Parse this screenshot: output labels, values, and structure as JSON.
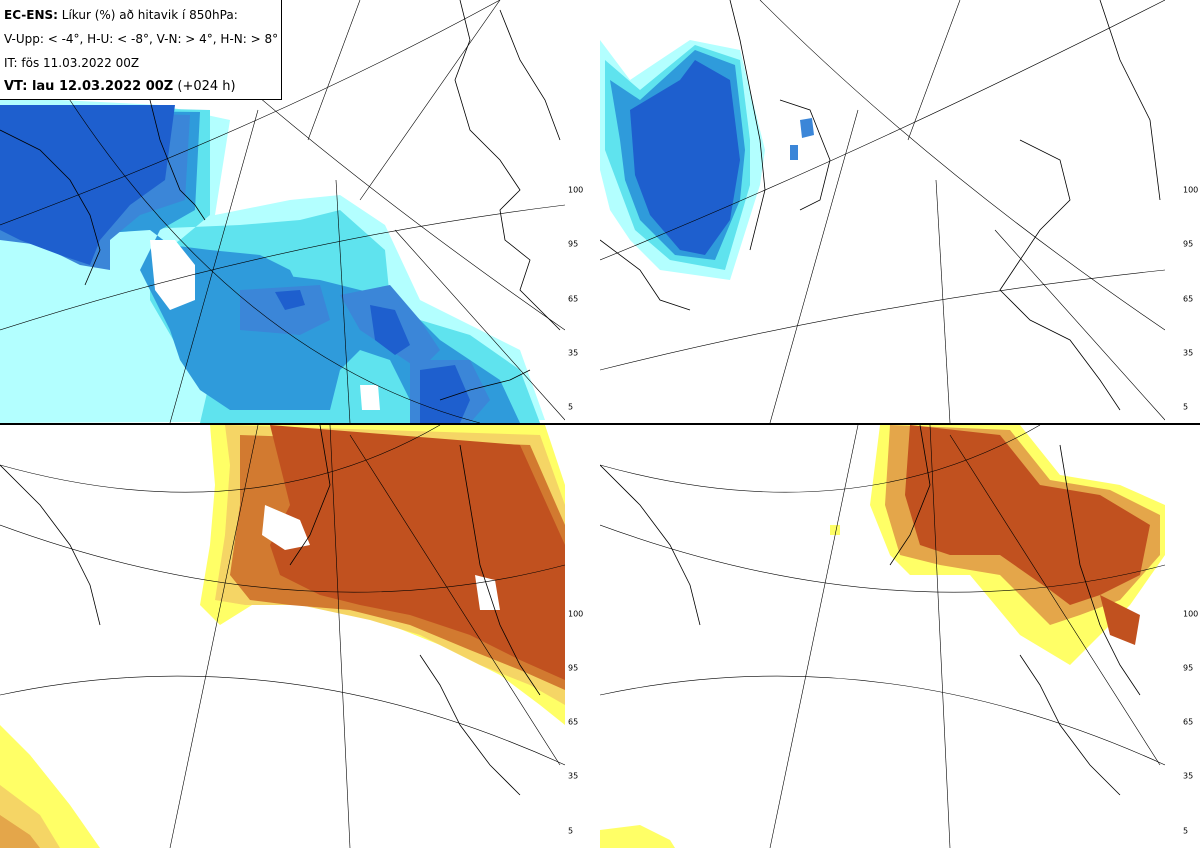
{
  "info": {
    "line1_bold": "EC-ENS:",
    "line1_rest": " Líkur (%) að hitavik í 850hPa:",
    "line2": "V-Upp: < -4°, H-U: < -8°, V-N: > 4°, H-N: > 8°",
    "line3": "IT: fös 11.03.2022 00Z",
    "line4_bold": "VT: lau 12.03.2022 00Z",
    "line4_rest": " (+024 h)"
  },
  "colorbar_ticks": [
    "100",
    "95",
    "65",
    "35",
    "5"
  ],
  "colors": {
    "cold": [
      "#b3ffff",
      "#5fe3ee",
      "#2f9bdb",
      "#3b86d8",
      "#1e5fce"
    ],
    "warm": [
      "#ffff66",
      "#f5d565",
      "#e4a64a",
      "#d27a30",
      "#c1511f"
    ],
    "coast": "#000000",
    "grid": "#000000"
  },
  "panels": [
    {
      "id": "v-upp",
      "palette": "cold"
    },
    {
      "id": "h-u",
      "palette": "cold"
    },
    {
      "id": "v-n",
      "palette": "warm"
    },
    {
      "id": "h-n",
      "palette": "warm"
    }
  ]
}
